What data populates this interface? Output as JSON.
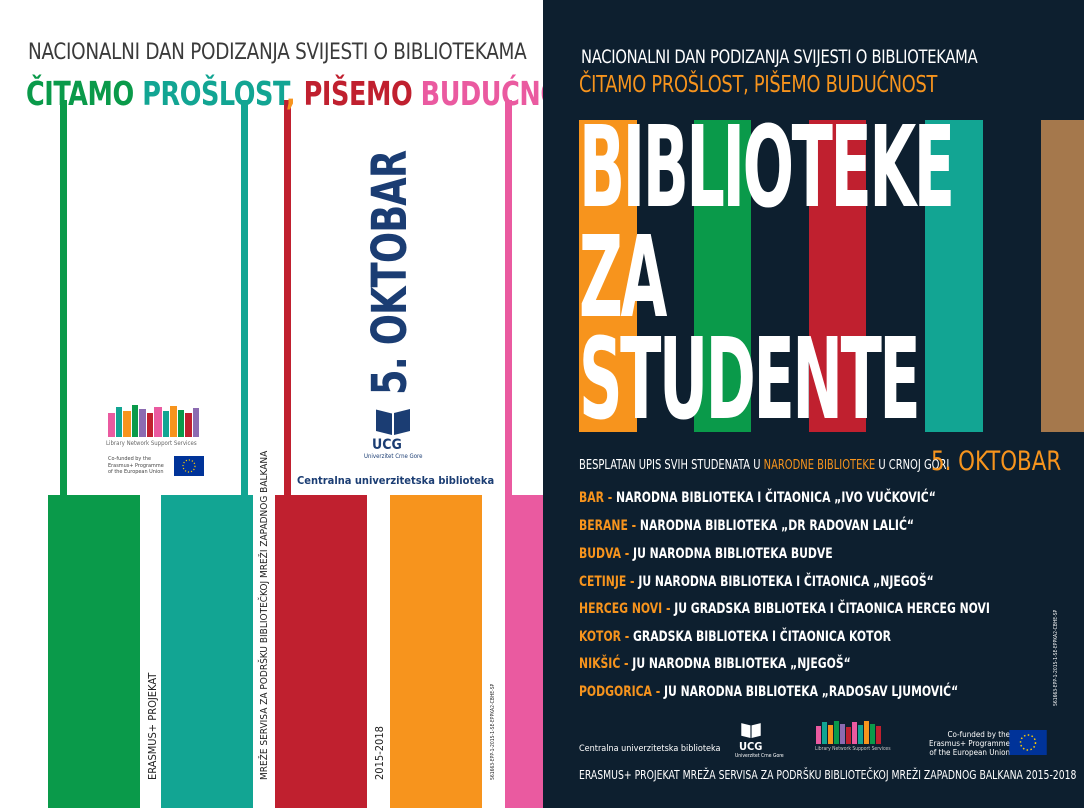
{
  "left": {
    "header_line1": "NACIONALNI DAN PODIZANJA SVIJESTI O BIBLIOTEKAMA",
    "header_line2_parts": [
      {
        "text": "ČITAMO ",
        "color": "#0a9a4a"
      },
      {
        "text": "PROŠLOST",
        "color": "#12a593"
      },
      {
        "text": ", ",
        "color": "#f7941d"
      },
      {
        "text": "PIŠEMO ",
        "color": "#c0202f"
      },
      {
        "text": "BUDUĆNOST",
        "color": "#ea5aa0"
      }
    ],
    "date_vertical": "5. OKTOBAR",
    "ucg_label": "UCG",
    "ucg_sub": "Univerzitet Crne Gore",
    "library_name": "Centralna univerzitetska biblioteka",
    "lnss_label": "Library Network Support Services",
    "cofunded_text": "Co-funded by the Erasmus+ Programme of the European Union",
    "vertical_texts": {
      "erasmus": "ERASMUS+ PROJEKAT",
      "mreze": "MREŽE SERVISA ZA PODRŠKU BIBLIOTEČKOJ MREŽI ZAPADNOG BALKANA",
      "years": "2015-2018",
      "small_code": "561663-EPP-1-2015-1-SE-EPPKA2-CBHE-SP"
    },
    "colors": {
      "green": "#0a9a4a",
      "teal": "#12a593",
      "red": "#c0202f",
      "orange": "#f7941d",
      "pink": "#ea5aa0",
      "navy": "#1b3d73"
    }
  },
  "right": {
    "header_line1": "NACIONALNI DAN PODIZANJA SVIJESTI O BIBLIOTEKAMA",
    "header_line2": "ČITAMO PROŠLOST, PIŠEMO BUDUĆNOST",
    "title_lines": [
      "BIBLIOTEKE",
      "ZA",
      "STUDENTE"
    ],
    "besplatan_pre": "BESPLATAN UPIS SVIH STUDENATA U ",
    "besplatan_hl": "NARODNE BIBLIOTEKE",
    "besplatan_post": " U CRNOJ GORI",
    "date": "5. OKTOBAR",
    "libraries": [
      {
        "city": "BAR",
        "name": "NARODNA BIBLIOTEKA I ČITAONICA „IVO VUČKOVIĆ“"
      },
      {
        "city": "BERANE",
        "name": "NARODNA BIBLIOTEKA „DR RADOVAN LALIĆ“"
      },
      {
        "city": "BUDVA",
        "name": "JU NARODNA BIBLIOTEKA BUDVE"
      },
      {
        "city": "CETINJE",
        "name": "JU NARODNA BIBLIOTEKA I ČITAONICA „NJEGOŠ“"
      },
      {
        "city": "HERCEG NOVI",
        "name": "JU GRADSKA BIBLIOTEKA I ČITAONICA HERCEG NOVI"
      },
      {
        "city": "KOTOR",
        "name": "GRADSKA BIBLIOTEKA I ČITAONICA KOTOR"
      },
      {
        "city": "NIKŠIĆ",
        "name": "JU NARODNA BIBLIOTEKA „NJEGOŠ“"
      },
      {
        "city": "PODGORICA",
        "name": "JU NARODNA BIBLIOTEKA „RADOSAV LJUMOVIĆ“"
      }
    ],
    "footer_library": "Centralna univerzitetska biblioteka",
    "footer_ucg": "UCG",
    "footer_ucg_sub": "Univerzitet Crne Gore",
    "footer_lnss": "Library Network Support Services",
    "footer_cofunded": [
      "Co-funded by the",
      "Erasmus+ Programme",
      "of the European Union"
    ],
    "footer_line": "ERASMUS+ PROJEKAT MREŽA SERVISA ZA PODRŠKU BIBLIOTEČKOJ MREŽI ZAPADNOG BALKANA 2015-2018",
    "tiny_code": "561663-EPP-1-2015-1-SE-EPPKA2-CBHE-SP",
    "colors": {
      "background": "#0d1f2f",
      "orange": "#f7941d",
      "green": "#0a9a4a",
      "red": "#c0202f",
      "teal": "#12a593",
      "brown": "#a5784c"
    }
  }
}
